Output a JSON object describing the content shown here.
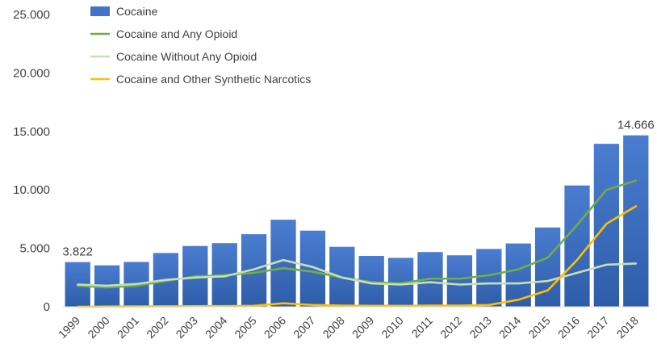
{
  "chart_data": {
    "type": "bar",
    "categories": [
      "1999",
      "2000",
      "2001",
      "2002",
      "2003",
      "2004",
      "2005",
      "2006",
      "2007",
      "2008",
      "2009",
      "2010",
      "2011",
      "2012",
      "2013",
      "2014",
      "2015",
      "2016",
      "2017",
      "2018"
    ],
    "ylim": [
      0,
      25000
    ],
    "yticks": [
      0,
      5000,
      10000,
      15000,
      20000,
      25000
    ],
    "ytick_labels": [
      "0",
      "5.000",
      "10.000",
      "15.000",
      "20.000",
      "25.000"
    ],
    "grid": false,
    "legend_position": "top-left",
    "series": [
      {
        "name": "Cocaine",
        "kind": "bar",
        "color": "#4472C4",
        "values": [
          3822,
          3544,
          3833,
          4599,
          5199,
          5443,
          6208,
          7448,
          6512,
          5129,
          4350,
          4183,
          4681,
          4404,
          4944,
          5415,
          6784,
          10375,
          13942,
          14666
        ]
      },
      {
        "name": "Cocaine and Any Opioid",
        "kind": "line",
        "color": "#70AD47",
        "values": [
          1800,
          1650,
          1800,
          2200,
          2600,
          2700,
          2900,
          3300,
          3000,
          2500,
          2100,
          2000,
          2400,
          2400,
          2700,
          3200,
          4200,
          7000,
          10000,
          10800
        ]
      },
      {
        "name": "Cocaine Without Any Opioid",
        "kind": "line",
        "color": "#C5E0B4",
        "values": [
          1900,
          1800,
          1950,
          2300,
          2500,
          2600,
          3200,
          4000,
          3400,
          2500,
          2000,
          1900,
          2100,
          1900,
          2000,
          2000,
          2200,
          2900,
          3600,
          3700
        ]
      },
      {
        "name": "Cocaine and Other Synthetic Narcotics",
        "kind": "line",
        "color": "#FFC000",
        "values": [
          0,
          20,
          30,
          40,
          50,
          60,
          80,
          300,
          150,
          100,
          80,
          80,
          100,
          100,
          150,
          600,
          1400,
          4000,
          7100,
          8600
        ]
      }
    ],
    "data_labels": [
      {
        "category": "1999",
        "text": "3.822"
      },
      {
        "category": "2018",
        "text": "14.666"
      }
    ]
  }
}
